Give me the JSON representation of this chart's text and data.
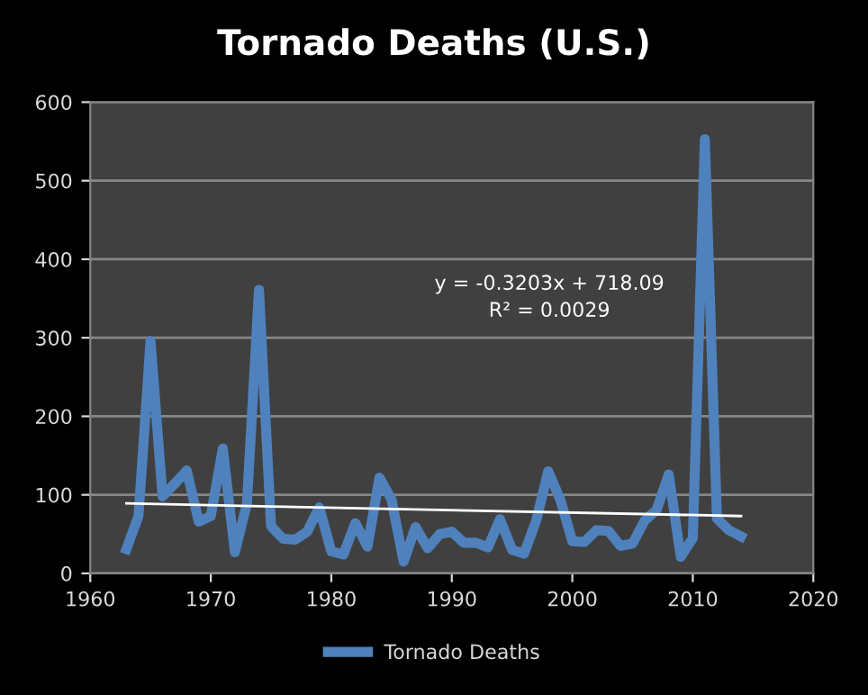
{
  "chart_data": {
    "type": "line",
    "title": "Tornado Deaths (U.S.)",
    "x": [
      1963,
      1964,
      1965,
      1966,
      1967,
      1968,
      1969,
      1970,
      1971,
      1972,
      1973,
      1974,
      1975,
      1976,
      1977,
      1978,
      1979,
      1980,
      1981,
      1982,
      1983,
      1984,
      1985,
      1986,
      1987,
      1988,
      1989,
      1990,
      1991,
      1992,
      1993,
      1994,
      1995,
      1996,
      1997,
      1998,
      1999,
      2000,
      2001,
      2002,
      2003,
      2004,
      2005,
      2006,
      2007,
      2008,
      2009,
      2010,
      2011,
      2012,
      2013,
      2014
    ],
    "series": [
      {
        "name": "Tornado Deaths",
        "color": "#4f81bd",
        "values": [
          31,
          73,
          296,
          98,
          114,
          131,
          66,
          73,
          159,
          27,
          89,
          361,
          60,
          44,
          43,
          53,
          84,
          28,
          24,
          64,
          34,
          122,
          94,
          15,
          59,
          32,
          50,
          53,
          39,
          39,
          33,
          69,
          30,
          25,
          67,
          130,
          94,
          41,
          40,
          55,
          54,
          35,
          38,
          67,
          81,
          126,
          21,
          45,
          553,
          70,
          55,
          47
        ]
      },
      {
        "type": "line",
        "color": "#ffffff",
        "x": [
          1963,
          2014
        ],
        "values": [
          89,
          73
        ]
      }
    ],
    "annotations": [
      "y = -0.3203x + 718.09\nR² = 0.0029"
    ],
    "xlim": [
      1960,
      2020
    ],
    "xticks": [
      1960,
      1970,
      1980,
      1990,
      2000,
      2010,
      2020
    ],
    "ylim": [
      0,
      600
    ],
    "yticks": [
      0,
      100,
      200,
      300,
      400,
      500,
      600
    ],
    "grid": "y",
    "legend": "bottom"
  }
}
